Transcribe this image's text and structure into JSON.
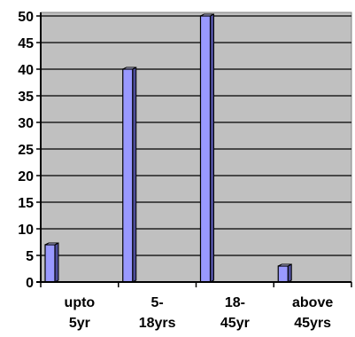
{
  "chart_data": {
    "type": "bar",
    "categories": [
      [
        "upto",
        "5yr"
      ],
      [
        "5-",
        "18yrs"
      ],
      [
        "18-",
        "45yr"
      ],
      [
        "above",
        "45yrs"
      ]
    ],
    "values": [
      7,
      40,
      50,
      3
    ],
    "ylim": [
      0,
      50
    ],
    "yticks": [
      0,
      5,
      10,
      15,
      20,
      25,
      30,
      35,
      40,
      45,
      50
    ],
    "grid": true,
    "colors": {
      "plot_background": "#c0c0c0",
      "bar_face": "#9999ff",
      "bar_side": "#4d4d99",
      "bar_top": "#ccccff",
      "gridline": "#000000"
    }
  }
}
